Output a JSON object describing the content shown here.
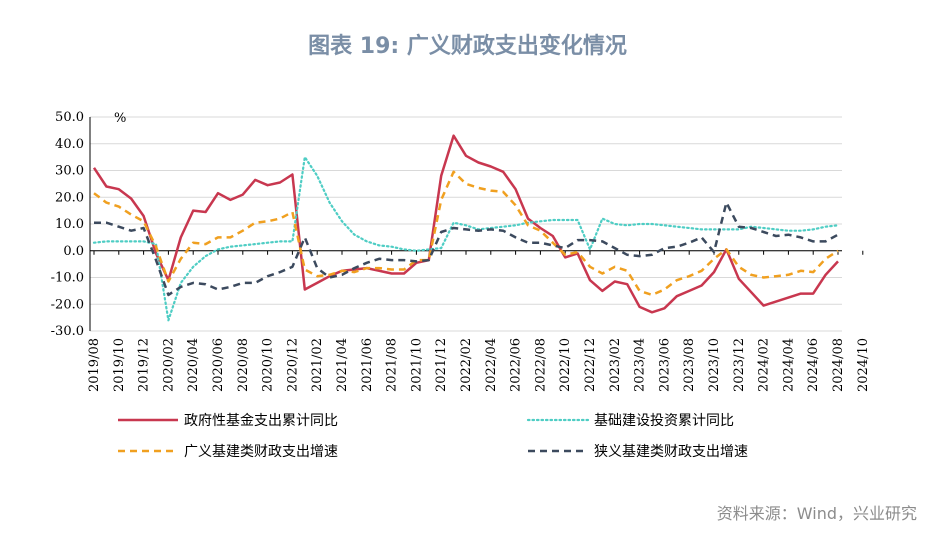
{
  "title": "图表 19: 广义财政支出变化情况",
  "source": "资料来源：Wind，兴业研究",
  "chart_data": {
    "type": "line",
    "unit_label": "%",
    "ylim": [
      -30,
      50
    ],
    "yticks": [
      "50.0",
      "40.0",
      "30.0",
      "20.0",
      "10.0",
      "0.0",
      "-10.0",
      "-20.0",
      "-30.0"
    ],
    "ytick_values": [
      50,
      40,
      30,
      20,
      10,
      0,
      -10,
      -20,
      -30
    ],
    "xticks": [
      "2019/08",
      "2019/10",
      "2019/12",
      "2020/02",
      "2020/04",
      "2020/06",
      "2020/08",
      "2020/10",
      "2020/12",
      "2021/02",
      "2021/04",
      "2021/06",
      "2021/08",
      "2021/10",
      "2021/12",
      "2022/02",
      "2022/04",
      "2022/06",
      "2022/08",
      "2022/10",
      "2022/12",
      "2023/02",
      "2023/04",
      "2023/06",
      "2023/08",
      "2023/10",
      "2023/12",
      "2024/02",
      "2024/04",
      "2024/06",
      "2024/08",
      "2024/10"
    ],
    "grid": "horizontal",
    "legend_position": "bottom",
    "series": [
      {
        "name": "政府性基金支出累计同比",
        "color": "#c8374f",
        "style": "solid",
        "values": [
          31,
          24,
          23,
          19.5,
          13,
          -1,
          -11,
          5,
          15,
          14.5,
          21.5,
          19,
          21,
          26.5,
          24.5,
          25.5,
          28.5,
          -14.5,
          -12,
          -9.5,
          -7.5,
          -7,
          -6.5,
          -7.5,
          -8.5,
          -8.5,
          -4.5,
          -3.5,
          28,
          43,
          35.5,
          33,
          31.5,
          29.5,
          23,
          12,
          8.5,
          5.5,
          -2.5,
          -1,
          -11,
          -15,
          -11.5,
          -12.5,
          -21,
          -23,
          -21.5,
          -17,
          -15,
          -13,
          -8,
          0.5,
          -10.5,
          -15.5,
          -20.5,
          -19,
          -17.5,
          -16,
          -16,
          -9,
          -4
        ]
      },
      {
        "name": "基础建设投资累计同比",
        "color": "#4ecdc4",
        "style": "dotted",
        "values": [
          3,
          3.5,
          3.5,
          3.5,
          3.5,
          2.5,
          -26,
          -12,
          -6,
          -2,
          0.5,
          1.5,
          2,
          2.5,
          3,
          3.5,
          3.5,
          35,
          28,
          18,
          11,
          6,
          3.5,
          2,
          1.5,
          0.5,
          0,
          0.5,
          1,
          10.5,
          9.5,
          8,
          8.5,
          9,
          9.5,
          10.5,
          11,
          11.5,
          11.5,
          11.5,
          0.5,
          12,
          10,
          9.5,
          10,
          10,
          9.5,
          9,
          8.5,
          8,
          8,
          8,
          8,
          9,
          8.5,
          8,
          7.5,
          7.5,
          8,
          9,
          9.5
        ]
      },
      {
        "name": "广义基建类财政支出增速",
        "color": "#f0a020",
        "style": "dashed",
        "values": [
          21.5,
          18,
          16.5,
          13.5,
          11,
          1.5,
          -11.5,
          -3,
          3,
          2.5,
          5,
          5,
          7.5,
          10.5,
          11,
          12,
          14.5,
          -7,
          -9.5,
          -9,
          -7.5,
          -8,
          -6.5,
          -6.5,
          -7,
          -7,
          -3.5,
          -3.5,
          19,
          29.5,
          25,
          23.5,
          22.5,
          22,
          17,
          9.5,
          7.5,
          3,
          -1.5,
          -0.5,
          -6,
          -8.5,
          -6,
          -7.5,
          -15,
          -16.5,
          -14.5,
          -11,
          -9.5,
          -7.5,
          -3,
          0.5,
          -6,
          -9,
          -10,
          -9.5,
          -9,
          -7.5,
          -8,
          -3,
          0
        ]
      },
      {
        "name": "狭义基建类财政支出增速",
        "color": "#3c4a5e",
        "style": "dashed",
        "values": [
          10.5,
          10.5,
          9,
          7.5,
          8.5,
          -3.5,
          -16.5,
          -13.5,
          -12,
          -12.5,
          -14.5,
          -13.5,
          -12,
          -12,
          -9.5,
          -8,
          -6,
          5,
          -6.5,
          -10,
          -9,
          -6.5,
          -4.5,
          -3,
          -3.5,
          -3.5,
          -4,
          -3.5,
          7,
          8.5,
          8,
          7.5,
          8,
          7.5,
          5,
          3,
          3,
          2,
          1,
          4,
          4,
          3.5,
          1,
          -1.5,
          -2,
          -1.5,
          1,
          1.5,
          3,
          5,
          -0.5,
          18,
          9,
          8.5,
          7,
          5.5,
          6,
          5,
          3.5,
          3.5,
          6
        ]
      }
    ]
  }
}
